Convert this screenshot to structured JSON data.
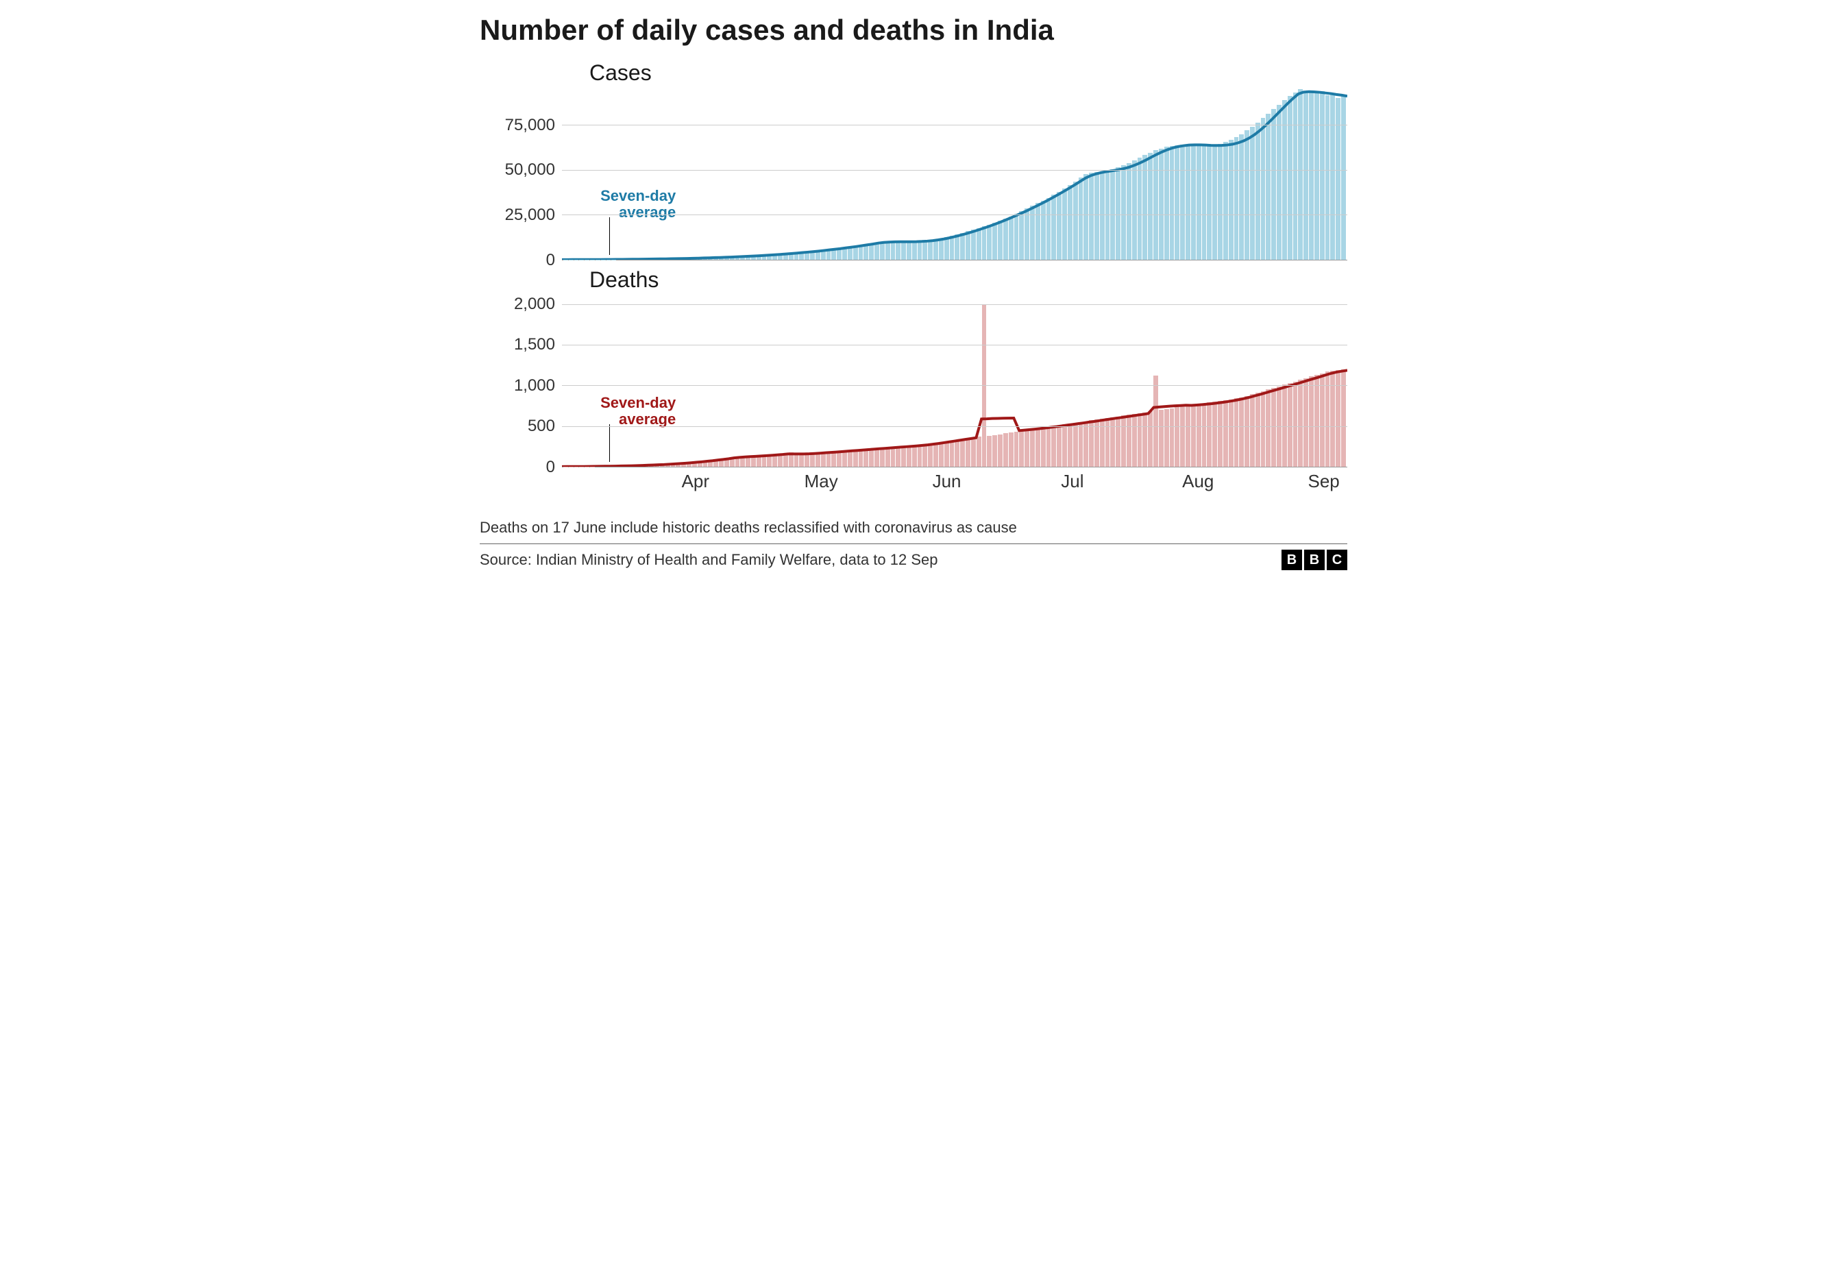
{
  "title": "Number of daily cases and deaths in India",
  "charts": {
    "cases": {
      "subtitle": "Cases",
      "type": "bar+line",
      "bar_color": "#a8d5e5",
      "line_color": "#1e7ba6",
      "line_width": 4,
      "background_color": "#ffffff",
      "grid_color": "#cccccc",
      "annotation_label": "Seven-day\naverage",
      "annotation_color": "#1e7ba6",
      "ylim": [
        0,
        95000
      ],
      "yticks": [
        0,
        25000,
        50000,
        75000
      ],
      "ytick_labels": [
        "0",
        "25,000",
        "50,000",
        "75,000"
      ],
      "data": [
        50,
        60,
        70,
        80,
        90,
        100,
        120,
        140,
        160,
        180,
        200,
        220,
        250,
        280,
        310,
        350,
        390,
        430,
        480,
        530,
        590,
        650,
        720,
        790,
        870,
        960,
        1050,
        1150,
        1260,
        1380,
        1510,
        1650,
        1800,
        1960,
        2130,
        2310,
        2500,
        2700,
        2910,
        3130,
        3360,
        3600,
        3850,
        4110,
        4380,
        4660,
        4950,
        5250,
        5560,
        5880,
        6210,
        6550,
        6900,
        7260,
        7630,
        8010,
        8400,
        8800,
        9210,
        9630,
        9850,
        9900,
        9950,
        10000,
        10050,
        10100,
        10300,
        10600,
        11000,
        11500,
        12000,
        12600,
        13300,
        14100,
        15000,
        15900,
        16800,
        17700,
        18600,
        19500,
        20500,
        21600,
        22800,
        24100,
        25500,
        27000,
        28500,
        30000,
        31500,
        33000,
        34500,
        36100,
        37800,
        39600,
        41500,
        43500,
        45600,
        47800,
        48500,
        49000,
        49300,
        49800,
        50500,
        51400,
        52500,
        53800,
        55200,
        56700,
        58200,
        59700,
        61000,
        62000,
        62800,
        63400,
        63800,
        64000,
        64000,
        63900,
        63700,
        63600,
        63700,
        64000,
        64600,
        65500,
        66700,
        68200,
        70000,
        72000,
        74200,
        76500,
        78900,
        81400,
        83900,
        86400,
        88800,
        91100,
        93200,
        95000,
        93500,
        94200,
        92800,
        93800,
        91500,
        92500,
        90200,
        91600
      ],
      "avg": [
        50,
        55,
        62,
        70,
        80,
        91,
        105,
        121,
        139,
        159,
        181,
        205,
        232,
        261,
        293,
        328,
        366,
        407,
        452,
        501,
        554,
        611,
        673,
        740,
        812,
        890,
        974,
        1064,
        1161,
        1265,
        1376,
        1495,
        1622,
        1758,
        1902,
        2056,
        2220,
        2394,
        2579,
        2775,
        2983,
        3203,
        3436,
        3682,
        3941,
        4215,
        4503,
        4806,
        5124,
        5458,
        5808,
        6175,
        6559,
        6961,
        7381,
        7820,
        8278,
        8756,
        9254,
        9603,
        9829,
        9947,
        9990,
        10012,
        10033,
        10080,
        10186,
        10371,
        10657,
        11057,
        11565,
        12168,
        12852,
        13608,
        14430,
        15312,
        16251,
        17244,
        18287,
        19380,
        20521,
        21710,
        22947,
        24233,
        25567,
        26950,
        28383,
        29867,
        31400,
        32983,
        34617,
        36300,
        38033,
        39817,
        41650,
        43533,
        45467,
        46900,
        47871,
        48600,
        49133,
        49586,
        50086,
        50714,
        51543,
        52614,
        53929,
        55414,
        56986,
        58543,
        60000,
        61271,
        62286,
        63014,
        63514,
        63829,
        63957,
        63943,
        63829,
        63686,
        63600,
        63643,
        63871,
        64329,
        65086,
        66200,
        67714,
        69657,
        72014,
        74686,
        77600,
        80643,
        83743,
        86800,
        89686,
        92271,
        93314,
        93571,
        93400,
        93229,
        92829,
        92486,
        91986,
        91600,
        91100
      ]
    },
    "deaths": {
      "subtitle": "Deaths",
      "type": "bar+line",
      "bar_color": "#e5b5b5",
      "line_color": "#a01818",
      "line_width": 4,
      "background_color": "#ffffff",
      "grid_color": "#cccccc",
      "annotation_label": "Seven-day\naverage",
      "annotation_color": "#a01818",
      "ylim": [
        0,
        2100
      ],
      "yticks": [
        0,
        500,
        1000,
        1500,
        2000
      ],
      "ytick_labels": [
        "0",
        "500",
        "1,000",
        "1,500",
        "2,000"
      ],
      "data": [
        1,
        2,
        2,
        3,
        3,
        4,
        5,
        6,
        7,
        8,
        9,
        11,
        13,
        15,
        17,
        20,
        23,
        26,
        30,
        34,
        38,
        43,
        48,
        54,
        60,
        67,
        74,
        82,
        90,
        99,
        108,
        118,
        128,
        120,
        125,
        130,
        135,
        140,
        145,
        150,
        155,
        160,
        180,
        150,
        155,
        160,
        165,
        170,
        175,
        180,
        185,
        190,
        195,
        200,
        205,
        210,
        215,
        220,
        225,
        230,
        235,
        240,
        245,
        250,
        255,
        260,
        265,
        270,
        280,
        290,
        300,
        310,
        320,
        330,
        340,
        350,
        360,
        370,
        2003,
        380,
        390,
        400,
        410,
        420,
        430,
        440,
        450,
        460,
        470,
        480,
        490,
        500,
        510,
        520,
        530,
        540,
        550,
        560,
        570,
        580,
        590,
        600,
        610,
        620,
        630,
        640,
        650,
        660,
        670,
        680,
        1120,
        700,
        710,
        720,
        730,
        740,
        750,
        760,
        770,
        780,
        790,
        800,
        810,
        820,
        830,
        840,
        850,
        870,
        890,
        910,
        930,
        950,
        970,
        990,
        1010,
        1030,
        1050,
        1070,
        1090,
        1110,
        1130,
        1150,
        1170,
        1180,
        1190,
        1200
      ],
      "avg": [
        1,
        1.5,
        2,
        2.3,
        2.8,
        3.3,
        4,
        4.7,
        5.7,
        6.7,
        7.7,
        9,
        10.3,
        12,
        13.7,
        16,
        18.3,
        21,
        24,
        27.3,
        31,
        35,
        39.3,
        44,
        49,
        54.7,
        60.7,
        67.3,
        74.3,
        82,
        90,
        98.7,
        108,
        115,
        120,
        124,
        128,
        132,
        136,
        140,
        145,
        150,
        157,
        157,
        157,
        157,
        159,
        162,
        166,
        171,
        176,
        181,
        186,
        191,
        196,
        201,
        206,
        211,
        216,
        221,
        226,
        231,
        236,
        241,
        246,
        251,
        256,
        262,
        269,
        277,
        286,
        296,
        306,
        316,
        326,
        336,
        346,
        356,
        588,
        590,
        593,
        595,
        596,
        597,
        599,
        444,
        450,
        456,
        463,
        470,
        478,
        486,
        494,
        503,
        512,
        521,
        530,
        539,
        549,
        558,
        568,
        578,
        587,
        597,
        606,
        616,
        625,
        635,
        644,
        654,
        729,
        735,
        740,
        745,
        749,
        753,
        757,
        755,
        759,
        764,
        770,
        777,
        785,
        794,
        804,
        815,
        827,
        842,
        858,
        876,
        894,
        913,
        932,
        951,
        970,
        990,
        1009,
        1029,
        1049,
        1069,
        1089,
        1109,
        1129,
        1149,
        1164,
        1176,
        1186
      ]
    }
  },
  "x_axis": {
    "labels": [
      "Apr",
      "May",
      "Jun",
      "Jul",
      "Aug",
      "Sep"
    ],
    "positions_pct": [
      17,
      33,
      49,
      65,
      81,
      97
    ]
  },
  "note": "Deaths on 17 June include historic deaths reclassified with coronavirus as cause",
  "source": "Source: Indian Ministry of Health and Family Welfare, data to 12 Sep",
  "logo": [
    "B",
    "B",
    "C"
  ],
  "title_fontsize": 42,
  "subtitle_fontsize": 32,
  "axis_fontsize": 24,
  "note_fontsize": 22
}
